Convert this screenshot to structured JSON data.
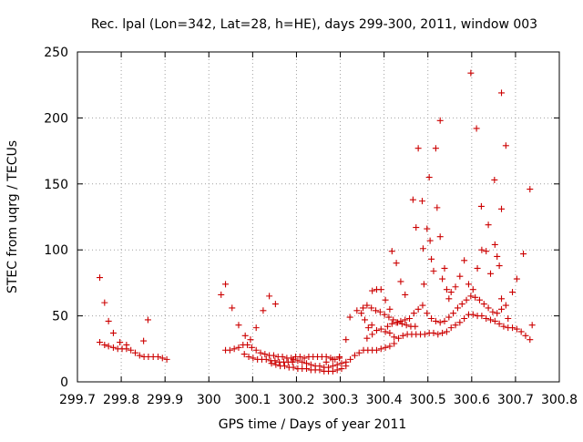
{
  "chart_data": {
    "type": "scatter",
    "title": "Rec. lpal (Lon=342, Lat=28, h=HE), days 299-300, 2011, window 003",
    "xlabel": "GPS time / Days of year 2011",
    "ylabel": "STEC from uqrg / TECUs",
    "xlim": [
      299.7,
      300.8
    ],
    "ylim": [
      0,
      250
    ],
    "grid": true,
    "marker": "+",
    "color": "#cc0000",
    "x_ticks": [
      299.7,
      299.8,
      299.9,
      300.0,
      300.1,
      300.2,
      300.3,
      300.4,
      300.5,
      300.6,
      300.7,
      300.8
    ],
    "x_tick_labels": [
      "299.7",
      "299.8",
      "299.9",
      "300",
      "300.1",
      "300.2",
      "300.3",
      "300.4",
      "300.5",
      "300.6",
      "300.7",
      "300.8"
    ],
    "y_ticks": [
      0,
      50,
      100,
      150,
      200,
      250
    ],
    "y_tick_labels": [
      "0",
      "50",
      "100",
      "150",
      "200",
      "250"
    ],
    "points": [
      [
        299.751,
        79
      ],
      [
        299.762,
        60
      ],
      [
        299.771,
        46
      ],
      [
        299.782,
        37
      ],
      [
        299.851,
        31
      ],
      [
        299.861,
        47
      ],
      [
        299.751,
        30
      ],
      [
        299.762,
        28
      ],
      [
        299.771,
        27
      ],
      [
        299.782,
        26
      ],
      [
        299.792,
        25
      ],
      [
        299.802,
        25
      ],
      [
        299.812,
        25
      ],
      [
        299.822,
        24
      ],
      [
        299.832,
        22
      ],
      [
        299.842,
        20
      ],
      [
        299.852,
        19
      ],
      [
        299.862,
        19
      ],
      [
        299.873,
        19
      ],
      [
        299.884,
        19
      ],
      [
        299.894,
        18
      ],
      [
        299.904,
        17
      ],
      [
        299.797,
        30
      ],
      [
        299.812,
        28
      ],
      [
        300.028,
        66
      ],
      [
        300.038,
        74
      ],
      [
        300.053,
        56
      ],
      [
        300.068,
        43
      ],
      [
        300.083,
        35
      ],
      [
        300.095,
        32
      ],
      [
        300.108,
        41
      ],
      [
        300.124,
        54
      ],
      [
        300.138,
        65
      ],
      [
        300.152,
        59
      ],
      [
        300.038,
        24
      ],
      [
        300.048,
        24
      ],
      [
        300.058,
        25
      ],
      [
        300.068,
        26
      ],
      [
        300.078,
        28
      ],
      [
        300.088,
        28
      ],
      [
        300.098,
        26
      ],
      [
        300.108,
        24
      ],
      [
        300.118,
        22
      ],
      [
        300.081,
        21
      ],
      [
        300.091,
        19
      ],
      [
        300.101,
        18
      ],
      [
        300.111,
        17
      ],
      [
        300.121,
        17
      ],
      [
        300.131,
        17
      ],
      [
        300.141,
        16
      ],
      [
        300.151,
        16
      ],
      [
        300.161,
        15
      ],
      [
        300.171,
        15
      ],
      [
        300.181,
        15
      ],
      [
        300.191,
        15
      ],
      [
        300.128,
        21
      ],
      [
        300.138,
        20
      ],
      [
        300.148,
        20
      ],
      [
        300.158,
        19
      ],
      [
        300.168,
        19
      ],
      [
        300.178,
        18
      ],
      [
        300.188,
        18
      ],
      [
        300.198,
        19
      ],
      [
        300.208,
        19
      ],
      [
        300.218,
        18
      ],
      [
        300.228,
        19
      ],
      [
        300.238,
        19
      ],
      [
        300.248,
        19
      ],
      [
        300.258,
        19
      ],
      [
        300.268,
        19
      ],
      [
        300.278,
        18
      ],
      [
        300.288,
        17
      ],
      [
        300.298,
        18
      ],
      [
        300.143,
        14
      ],
      [
        300.153,
        13
      ],
      [
        300.163,
        12
      ],
      [
        300.173,
        12
      ],
      [
        300.183,
        11
      ],
      [
        300.193,
        11
      ],
      [
        300.203,
        10
      ],
      [
        300.213,
        10
      ],
      [
        300.223,
        10
      ],
      [
        300.233,
        9
      ],
      [
        300.243,
        9
      ],
      [
        300.253,
        9
      ],
      [
        300.263,
        8
      ],
      [
        300.273,
        8
      ],
      [
        300.283,
        8
      ],
      [
        300.293,
        9
      ],
      [
        300.303,
        10
      ],
      [
        300.313,
        12
      ],
      [
        300.193,
        17
      ],
      [
        300.203,
        16
      ],
      [
        300.213,
        15
      ],
      [
        300.223,
        14
      ],
      [
        300.233,
        13
      ],
      [
        300.243,
        12
      ],
      [
        300.253,
        12
      ],
      [
        300.263,
        11
      ],
      [
        300.273,
        11
      ],
      [
        300.283,
        12
      ],
      [
        300.293,
        13
      ],
      [
        300.303,
        14
      ],
      [
        300.313,
        15
      ],
      [
        300.323,
        17
      ],
      [
        300.333,
        20
      ],
      [
        300.343,
        22
      ],
      [
        300.353,
        24
      ],
      [
        300.363,
        24
      ],
      [
        300.373,
        24
      ],
      [
        300.383,
        24
      ],
      [
        300.393,
        25
      ],
      [
        300.403,
        26
      ],
      [
        300.413,
        27
      ],
      [
        300.423,
        29
      ],
      [
        300.268,
        15
      ],
      [
        300.283,
        17
      ],
      [
        300.298,
        19
      ],
      [
        300.313,
        32
      ],
      [
        300.322,
        49
      ],
      [
        300.338,
        54
      ],
      [
        300.348,
        52
      ],
      [
        300.356,
        47
      ],
      [
        300.364,
        41
      ],
      [
        300.372,
        43
      ],
      [
        300.352,
        56
      ],
      [
        300.361,
        58
      ],
      [
        300.371,
        56
      ],
      [
        300.381,
        54
      ],
      [
        300.391,
        53
      ],
      [
        300.401,
        51
      ],
      [
        300.411,
        49
      ],
      [
        300.421,
        47
      ],
      [
        300.431,
        45
      ],
      [
        300.441,
        44
      ],
      [
        300.451,
        43
      ],
      [
        300.461,
        42
      ],
      [
        300.471,
        42
      ],
      [
        300.373,
        69
      ],
      [
        300.383,
        70
      ],
      [
        300.393,
        70
      ],
      [
        300.403,
        62
      ],
      [
        300.413,
        55
      ],
      [
        300.418,
        99
      ],
      [
        300.428,
        90
      ],
      [
        300.438,
        76
      ],
      [
        300.448,
        66
      ],
      [
        300.466,
        138
      ],
      [
        300.473,
        117
      ],
      [
        300.478,
        177
      ],
      [
        300.487,
        137
      ],
      [
        300.489,
        101
      ],
      [
        300.491,
        74
      ],
      [
        300.498,
        116
      ],
      [
        300.503,
        155
      ],
      [
        300.505,
        107
      ],
      [
        300.508,
        93
      ],
      [
        300.513,
        84
      ],
      [
        300.518,
        177
      ],
      [
        300.521,
        132
      ],
      [
        300.528,
        198
      ],
      [
        300.528,
        110
      ],
      [
        300.533,
        78
      ],
      [
        300.538,
        86
      ],
      [
        300.543,
        70
      ],
      [
        300.548,
        63
      ],
      [
        300.361,
        33
      ],
      [
        300.373,
        36
      ],
      [
        300.383,
        39
      ],
      [
        300.393,
        40
      ],
      [
        300.403,
        38
      ],
      [
        300.413,
        37
      ],
      [
        300.423,
        34
      ],
      [
        300.433,
        33
      ],
      [
        300.443,
        35
      ],
      [
        300.453,
        36
      ],
      [
        300.463,
        36
      ],
      [
        300.473,
        36
      ],
      [
        300.483,
        36
      ],
      [
        300.493,
        36
      ],
      [
        300.503,
        37
      ],
      [
        300.513,
        37
      ],
      [
        300.523,
        36
      ],
      [
        300.533,
        37
      ],
      [
        300.543,
        38
      ],
      [
        300.553,
        41
      ],
      [
        300.563,
        43
      ],
      [
        300.573,
        45
      ],
      [
        300.583,
        48
      ],
      [
        300.593,
        51
      ],
      [
        300.603,
        51
      ],
      [
        300.613,
        50
      ],
      [
        300.623,
        50
      ],
      [
        300.633,
        48
      ],
      [
        300.643,
        47
      ],
      [
        300.653,
        46
      ],
      [
        300.663,
        44
      ],
      [
        300.673,
        42
      ],
      [
        300.683,
        41
      ],
      [
        300.693,
        41
      ],
      [
        300.703,
        40
      ],
      [
        300.713,
        38
      ],
      [
        300.723,
        35
      ],
      [
        300.733,
        32
      ],
      [
        300.408,
        42
      ],
      [
        300.418,
        44
      ],
      [
        300.428,
        45
      ],
      [
        300.438,
        46
      ],
      [
        300.448,
        47
      ],
      [
        300.458,
        48
      ],
      [
        300.468,
        52
      ],
      [
        300.478,
        55
      ],
      [
        300.488,
        58
      ],
      [
        300.498,
        52
      ],
      [
        300.508,
        48
      ],
      [
        300.518,
        46
      ],
      [
        300.528,
        45
      ],
      [
        300.538,
        46
      ],
      [
        300.548,
        49
      ],
      [
        300.558,
        52
      ],
      [
        300.568,
        56
      ],
      [
        300.578,
        59
      ],
      [
        300.588,
        62
      ],
      [
        300.598,
        65
      ],
      [
        300.608,
        64
      ],
      [
        300.618,
        62
      ],
      [
        300.628,
        59
      ],
      [
        300.638,
        56
      ],
      [
        300.648,
        53
      ],
      [
        300.658,
        52
      ],
      [
        300.668,
        55
      ],
      [
        300.678,
        58
      ],
      [
        300.553,
        68
      ],
      [
        300.563,
        72
      ],
      [
        300.573,
        80
      ],
      [
        300.583,
        92
      ],
      [
        300.593,
        74
      ],
      [
        300.603,
        70
      ],
      [
        300.613,
        86
      ],
      [
        300.623,
        100
      ],
      [
        300.633,
        99
      ],
      [
        300.643,
        82
      ],
      [
        300.653,
        104
      ],
      [
        300.663,
        88
      ],
      [
        300.598,
        234
      ],
      [
        300.611,
        192
      ],
      [
        300.622,
        133
      ],
      [
        300.638,
        119
      ],
      [
        300.652,
        153
      ],
      [
        300.668,
        219
      ],
      [
        300.678,
        179
      ],
      [
        300.668,
        131
      ],
      [
        300.658,
        95
      ],
      [
        300.668,
        63
      ],
      [
        300.683,
        48
      ],
      [
        300.693,
        68
      ],
      [
        300.703,
        78
      ],
      [
        300.718,
        97
      ],
      [
        300.733,
        146
      ],
      [
        300.738,
        43
      ]
    ]
  }
}
